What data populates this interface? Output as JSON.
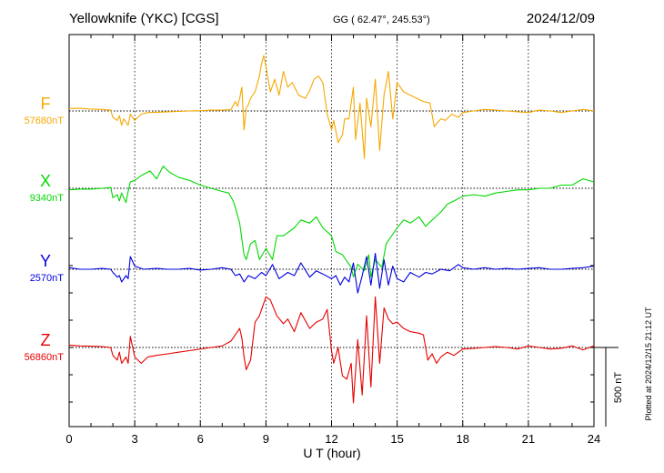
{
  "header": {
    "station": "Yellowknife (YKC)  [CGS]",
    "coords": "GG ( 62.47°, 245.53°)",
    "date": "2024/12/09"
  },
  "footer": {
    "plotted": "Plotted at 2024/12/15 21:12 UT",
    "scale_label": "500 nT"
  },
  "chart_data": {
    "type": "line",
    "xlabel": "U T (hour)",
    "xlim": [
      0,
      24
    ],
    "xticks": [
      0,
      3,
      6,
      9,
      12,
      15,
      18,
      21,
      24
    ],
    "grid": true,
    "scale_bar_nT": 500,
    "series": [
      {
        "name": "F",
        "baseline_label": "57680nT",
        "color": "#f5a800",
        "x": [
          0,
          0.5,
          1,
          1.5,
          1.9,
          2.0,
          2.2,
          2.3,
          2.4,
          2.5,
          2.7,
          2.8,
          3.0,
          3.3,
          3.6,
          4.0,
          4.5,
          5.0,
          5.5,
          6.0,
          6.5,
          7.0,
          7.4,
          7.6,
          7.7,
          7.8,
          7.9,
          8.0,
          8.1,
          8.2,
          8.3,
          8.5,
          8.7,
          8.8,
          8.9,
          9.0,
          9.2,
          9.4,
          9.6,
          9.8,
          10.0,
          10.2,
          10.5,
          10.8,
          11.0,
          11.2,
          11.4,
          11.6,
          11.8,
          12.0,
          12.1,
          12.3,
          12.5,
          12.6,
          12.8,
          13.0,
          13.1,
          13.3,
          13.5,
          13.6,
          13.8,
          14.0,
          14.2,
          14.4,
          14.6,
          14.8,
          15.0,
          15.3,
          15.6,
          15.9,
          16.2,
          16.5,
          16.7,
          16.8,
          17.0,
          17.2,
          17.5,
          17.8,
          18.0,
          18.5,
          19.0,
          19.5,
          20.0,
          20.5,
          21.0,
          21.5,
          22.0,
          22.5,
          23.0,
          23.5,
          24.0
        ],
        "y": [
          15,
          18,
          12,
          10,
          5,
          -40,
          -60,
          -30,
          -90,
          -50,
          -90,
          -20,
          -60,
          -20,
          -10,
          -8,
          -5,
          -3,
          0,
          2,
          5,
          5,
          8,
          60,
          30,
          80,
          150,
          -120,
          20,
          40,
          80,
          120,
          220,
          300,
          350,
          280,
          120,
          200,
          100,
          250,
          150,
          180,
          100,
          80,
          130,
          200,
          220,
          180,
          -20,
          -120,
          -60,
          -200,
          -150,
          -50,
          -50,
          150,
          -180,
          50,
          -300,
          80,
          -100,
          200,
          -250,
          100,
          250,
          -50,
          180,
          120,
          100,
          80,
          60,
          50,
          -100,
          -80,
          -50,
          -60,
          -20,
          -40,
          -10,
          0,
          10,
          5,
          0,
          -5,
          -10,
          5,
          0,
          -10,
          0,
          10,
          0
        ]
      },
      {
        "name": "X",
        "baseline_label": "9340nT",
        "color": "#00d800",
        "x": [
          0,
          0.5,
          1,
          1.5,
          1.9,
          2.0,
          2.2,
          2.3,
          2.4,
          2.6,
          2.7,
          2.8,
          3.0,
          3.3,
          3.7,
          4.0,
          4.3,
          4.6,
          5.0,
          5.5,
          6.0,
          6.5,
          7.0,
          7.3,
          7.5,
          7.6,
          7.8,
          8.0,
          8.1,
          8.3,
          8.5,
          8.7,
          9.0,
          9.3,
          9.5,
          9.8,
          10.0,
          10.3,
          10.6,
          11.0,
          11.3,
          11.6,
          12.0,
          12.2,
          12.5,
          12.8,
          12.9,
          13.0,
          13.2,
          13.5,
          13.7,
          13.8,
          14.0,
          14.3,
          14.5,
          15.0,
          15.3,
          15.6,
          16.0,
          16.3,
          16.6,
          17.0,
          17.3,
          17.6,
          18.0,
          18.5,
          19.0,
          19.5,
          20.0,
          20.5,
          21.0,
          21.5,
          22.0,
          22.5,
          23.0,
          23.5,
          24.0
        ],
        "y": [
          -10,
          -5,
          -5,
          0,
          5,
          -60,
          -40,
          -80,
          -30,
          -90,
          -20,
          40,
          50,
          80,
          110,
          60,
          140,
          100,
          70,
          50,
          20,
          0,
          -20,
          -30,
          -80,
          -120,
          -220,
          -420,
          -450,
          -350,
          -330,
          -450,
          -380,
          -450,
          -300,
          -300,
          -280,
          -250,
          -200,
          -220,
          -180,
          -250,
          -300,
          -400,
          -420,
          -480,
          -500,
          -560,
          -480,
          -520,
          -420,
          -560,
          -450,
          -500,
          -350,
          -250,
          -200,
          -220,
          -180,
          -240,
          -200,
          -150,
          -100,
          -80,
          -50,
          -40,
          -50,
          -30,
          -20,
          -10,
          -10,
          0,
          0,
          20,
          20,
          60,
          40
        ]
      },
      {
        "name": "Y",
        "baseline_label": "2570nT",
        "color": "#0000e0",
        "x": [
          0,
          0.5,
          1,
          1.5,
          1.9,
          2.0,
          2.2,
          2.3,
          2.4,
          2.6,
          2.7,
          2.8,
          3.0,
          3.4,
          4.0,
          4.5,
          5.0,
          5.5,
          6.0,
          6.5,
          7.0,
          7.4,
          7.6,
          7.8,
          8.0,
          8.2,
          8.5,
          8.8,
          9.0,
          9.3,
          9.6,
          10.0,
          10.3,
          10.6,
          11.0,
          11.3,
          11.6,
          12.0,
          12.2,
          12.4,
          12.6,
          12.8,
          13.0,
          13.2,
          13.4,
          13.6,
          13.8,
          14.0,
          14.2,
          14.4,
          14.6,
          14.8,
          15.0,
          15.3,
          15.6,
          16.0,
          16.3,
          16.6,
          17.0,
          17.4,
          17.8,
          18.0,
          18.5,
          19.0,
          19.5,
          20.0,
          20.5,
          21.0,
          21.5,
          22.0,
          22.5,
          23.0,
          23.5,
          24.0
        ],
        "y": [
          10,
          0,
          0,
          5,
          0,
          -20,
          -50,
          -40,
          -80,
          -40,
          -60,
          80,
          20,
          0,
          5,
          0,
          0,
          5,
          -5,
          0,
          10,
          0,
          -40,
          -30,
          -80,
          -40,
          -60,
          -20,
          -40,
          30,
          -60,
          -20,
          -40,
          40,
          -50,
          -10,
          -30,
          -60,
          -40,
          -100,
          -50,
          -80,
          40,
          -150,
          -40,
          80,
          -100,
          100,
          -120,
          60,
          -100,
          20,
          -60,
          -80,
          -20,
          -50,
          -20,
          -30,
          0,
          -10,
          30,
          10,
          0,
          10,
          0,
          5,
          0,
          5,
          10,
          0,
          0,
          5,
          10,
          20
        ]
      },
      {
        "name": "Z",
        "baseline_label": "56860nT",
        "color": "#e60000",
        "x": [
          0,
          0.5,
          1,
          1.5,
          1.9,
          2.0,
          2.2,
          2.3,
          2.4,
          2.6,
          2.7,
          2.8,
          3.0,
          3.3,
          3.6,
          4.0,
          4.5,
          5.0,
          5.5,
          6.0,
          6.5,
          7.0,
          7.4,
          7.6,
          7.8,
          7.9,
          8.0,
          8.1,
          8.3,
          8.5,
          8.7,
          9.0,
          9.2,
          9.5,
          9.8,
          10.0,
          10.3,
          10.6,
          11.0,
          11.3,
          11.6,
          11.8,
          12.0,
          12.1,
          12.3,
          12.5,
          12.7,
          12.9,
          13.0,
          13.2,
          13.4,
          13.6,
          13.8,
          14.0,
          14.2,
          14.4,
          14.6,
          14.8,
          15.0,
          15.3,
          15.6,
          16.0,
          16.2,
          16.4,
          16.6,
          16.8,
          17.0,
          17.3,
          17.6,
          18.0,
          18.5,
          19.0,
          19.5,
          20.0,
          20.5,
          21.0,
          21.5,
          22.0,
          22.5,
          23.0,
          23.5,
          24.0
        ],
        "y": [
          15,
          10,
          8,
          5,
          0,
          -50,
          -80,
          -30,
          -100,
          -60,
          -100,
          70,
          -60,
          -100,
          -60,
          -50,
          -40,
          -30,
          -20,
          -10,
          0,
          10,
          40,
          80,
          120,
          60,
          -60,
          -140,
          -80,
          160,
          200,
          320,
          300,
          200,
          150,
          180,
          100,
          220,
          120,
          160,
          180,
          240,
          -20,
          -100,
          0,
          -180,
          -200,
          -100,
          -350,
          50,
          -300,
          200,
          -250,
          320,
          -100,
          250,
          180,
          150,
          160,
          120,
          100,
          90,
          80,
          -80,
          -40,
          -100,
          -60,
          -30,
          -50,
          -10,
          -5,
          0,
          5,
          0,
          -10,
          10,
          0,
          -10,
          -5,
          10,
          -15,
          10
        ]
      }
    ]
  }
}
